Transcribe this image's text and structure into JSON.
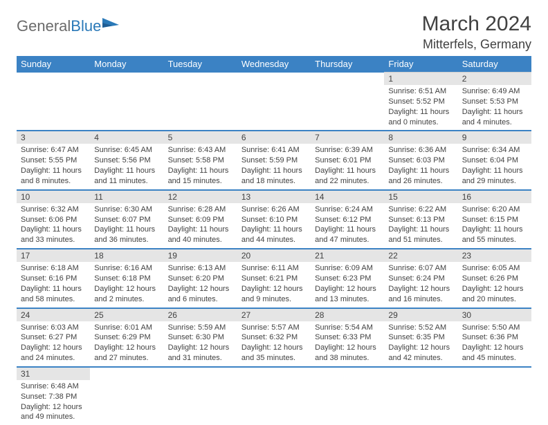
{
  "brand": {
    "part1": "General",
    "part2": "Blue"
  },
  "title": "March 2024",
  "location": "Mitterfels, Germany",
  "colors": {
    "header_bg": "#3b82c4",
    "header_fg": "#ffffff",
    "daynum_bg": "#e5e5e5",
    "text": "#414141",
    "rule": "#3b82c4"
  },
  "weekdays": [
    "Sunday",
    "Monday",
    "Tuesday",
    "Wednesday",
    "Thursday",
    "Friday",
    "Saturday"
  ],
  "weeks": [
    [
      null,
      null,
      null,
      null,
      null,
      {
        "n": "1",
        "sr": "Sunrise: 6:51 AM",
        "ss": "Sunset: 5:52 PM",
        "d1": "Daylight: 11 hours",
        "d2": "and 0 minutes."
      },
      {
        "n": "2",
        "sr": "Sunrise: 6:49 AM",
        "ss": "Sunset: 5:53 PM",
        "d1": "Daylight: 11 hours",
        "d2": "and 4 minutes."
      }
    ],
    [
      {
        "n": "3",
        "sr": "Sunrise: 6:47 AM",
        "ss": "Sunset: 5:55 PM",
        "d1": "Daylight: 11 hours",
        "d2": "and 8 minutes."
      },
      {
        "n": "4",
        "sr": "Sunrise: 6:45 AM",
        "ss": "Sunset: 5:56 PM",
        "d1": "Daylight: 11 hours",
        "d2": "and 11 minutes."
      },
      {
        "n": "5",
        "sr": "Sunrise: 6:43 AM",
        "ss": "Sunset: 5:58 PM",
        "d1": "Daylight: 11 hours",
        "d2": "and 15 minutes."
      },
      {
        "n": "6",
        "sr": "Sunrise: 6:41 AM",
        "ss": "Sunset: 5:59 PM",
        "d1": "Daylight: 11 hours",
        "d2": "and 18 minutes."
      },
      {
        "n": "7",
        "sr": "Sunrise: 6:39 AM",
        "ss": "Sunset: 6:01 PM",
        "d1": "Daylight: 11 hours",
        "d2": "and 22 minutes."
      },
      {
        "n": "8",
        "sr": "Sunrise: 6:36 AM",
        "ss": "Sunset: 6:03 PM",
        "d1": "Daylight: 11 hours",
        "d2": "and 26 minutes."
      },
      {
        "n": "9",
        "sr": "Sunrise: 6:34 AM",
        "ss": "Sunset: 6:04 PM",
        "d1": "Daylight: 11 hours",
        "d2": "and 29 minutes."
      }
    ],
    [
      {
        "n": "10",
        "sr": "Sunrise: 6:32 AM",
        "ss": "Sunset: 6:06 PM",
        "d1": "Daylight: 11 hours",
        "d2": "and 33 minutes."
      },
      {
        "n": "11",
        "sr": "Sunrise: 6:30 AM",
        "ss": "Sunset: 6:07 PM",
        "d1": "Daylight: 11 hours",
        "d2": "and 36 minutes."
      },
      {
        "n": "12",
        "sr": "Sunrise: 6:28 AM",
        "ss": "Sunset: 6:09 PM",
        "d1": "Daylight: 11 hours",
        "d2": "and 40 minutes."
      },
      {
        "n": "13",
        "sr": "Sunrise: 6:26 AM",
        "ss": "Sunset: 6:10 PM",
        "d1": "Daylight: 11 hours",
        "d2": "and 44 minutes."
      },
      {
        "n": "14",
        "sr": "Sunrise: 6:24 AM",
        "ss": "Sunset: 6:12 PM",
        "d1": "Daylight: 11 hours",
        "d2": "and 47 minutes."
      },
      {
        "n": "15",
        "sr": "Sunrise: 6:22 AM",
        "ss": "Sunset: 6:13 PM",
        "d1": "Daylight: 11 hours",
        "d2": "and 51 minutes."
      },
      {
        "n": "16",
        "sr": "Sunrise: 6:20 AM",
        "ss": "Sunset: 6:15 PM",
        "d1": "Daylight: 11 hours",
        "d2": "and 55 minutes."
      }
    ],
    [
      {
        "n": "17",
        "sr": "Sunrise: 6:18 AM",
        "ss": "Sunset: 6:16 PM",
        "d1": "Daylight: 11 hours",
        "d2": "and 58 minutes."
      },
      {
        "n": "18",
        "sr": "Sunrise: 6:16 AM",
        "ss": "Sunset: 6:18 PM",
        "d1": "Daylight: 12 hours",
        "d2": "and 2 minutes."
      },
      {
        "n": "19",
        "sr": "Sunrise: 6:13 AM",
        "ss": "Sunset: 6:20 PM",
        "d1": "Daylight: 12 hours",
        "d2": "and 6 minutes."
      },
      {
        "n": "20",
        "sr": "Sunrise: 6:11 AM",
        "ss": "Sunset: 6:21 PM",
        "d1": "Daylight: 12 hours",
        "d2": "and 9 minutes."
      },
      {
        "n": "21",
        "sr": "Sunrise: 6:09 AM",
        "ss": "Sunset: 6:23 PM",
        "d1": "Daylight: 12 hours",
        "d2": "and 13 minutes."
      },
      {
        "n": "22",
        "sr": "Sunrise: 6:07 AM",
        "ss": "Sunset: 6:24 PM",
        "d1": "Daylight: 12 hours",
        "d2": "and 16 minutes."
      },
      {
        "n": "23",
        "sr": "Sunrise: 6:05 AM",
        "ss": "Sunset: 6:26 PM",
        "d1": "Daylight: 12 hours",
        "d2": "and 20 minutes."
      }
    ],
    [
      {
        "n": "24",
        "sr": "Sunrise: 6:03 AM",
        "ss": "Sunset: 6:27 PM",
        "d1": "Daylight: 12 hours",
        "d2": "and 24 minutes."
      },
      {
        "n": "25",
        "sr": "Sunrise: 6:01 AM",
        "ss": "Sunset: 6:29 PM",
        "d1": "Daylight: 12 hours",
        "d2": "and 27 minutes."
      },
      {
        "n": "26",
        "sr": "Sunrise: 5:59 AM",
        "ss": "Sunset: 6:30 PM",
        "d1": "Daylight: 12 hours",
        "d2": "and 31 minutes."
      },
      {
        "n": "27",
        "sr": "Sunrise: 5:57 AM",
        "ss": "Sunset: 6:32 PM",
        "d1": "Daylight: 12 hours",
        "d2": "and 35 minutes."
      },
      {
        "n": "28",
        "sr": "Sunrise: 5:54 AM",
        "ss": "Sunset: 6:33 PM",
        "d1": "Daylight: 12 hours",
        "d2": "and 38 minutes."
      },
      {
        "n": "29",
        "sr": "Sunrise: 5:52 AM",
        "ss": "Sunset: 6:35 PM",
        "d1": "Daylight: 12 hours",
        "d2": "and 42 minutes."
      },
      {
        "n": "30",
        "sr": "Sunrise: 5:50 AM",
        "ss": "Sunset: 6:36 PM",
        "d1": "Daylight: 12 hours",
        "d2": "and 45 minutes."
      }
    ],
    [
      {
        "n": "31",
        "sr": "Sunrise: 6:48 AM",
        "ss": "Sunset: 7:38 PM",
        "d1": "Daylight: 12 hours",
        "d2": "and 49 minutes."
      },
      null,
      null,
      null,
      null,
      null,
      null
    ]
  ]
}
